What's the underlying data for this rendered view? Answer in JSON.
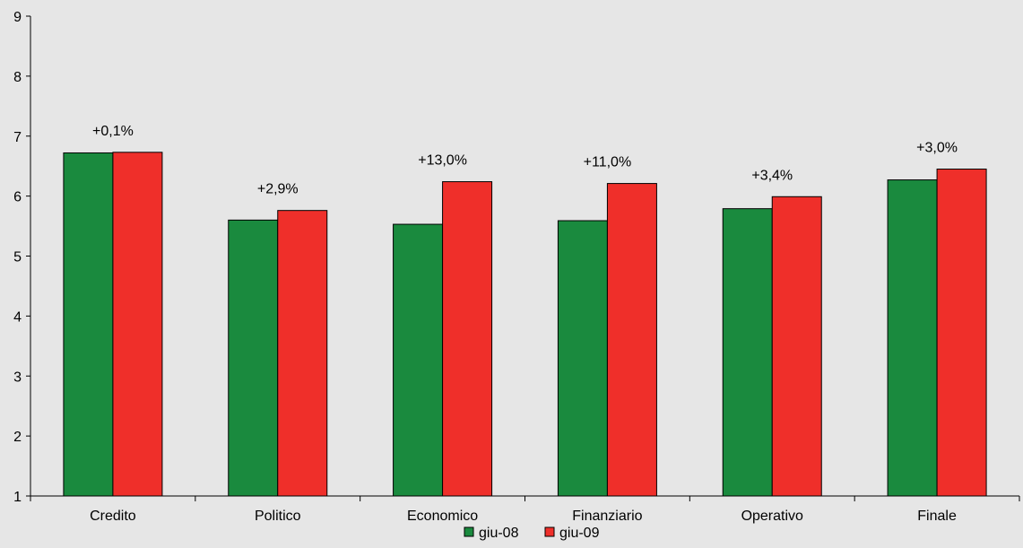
{
  "chart_data": {
    "type": "bar",
    "categories": [
      "Credito",
      "Politico",
      "Economico",
      "Finanziario",
      "Operativo",
      "Finale"
    ],
    "series": [
      {
        "name": "giu-08",
        "color": "#1a8a3e",
        "values": [
          6.72,
          5.6,
          5.53,
          5.59,
          5.79,
          6.27
        ]
      },
      {
        "name": "giu-09",
        "color": "#ef2f2a",
        "values": [
          6.73,
          5.76,
          6.24,
          6.21,
          5.99,
          6.45
        ]
      }
    ],
    "annotations": [
      "+0,1%",
      "+2,9%",
      "+13,0%",
      "+11,0%",
      "+3,4%",
      "+3,0%"
    ],
    "yticks": [
      1,
      2,
      3,
      4,
      5,
      6,
      7,
      8,
      9
    ],
    "ylim": [
      1,
      9
    ],
    "xlabel": "",
    "ylabel": "",
    "grid": false,
    "legend_position": "bottom"
  }
}
